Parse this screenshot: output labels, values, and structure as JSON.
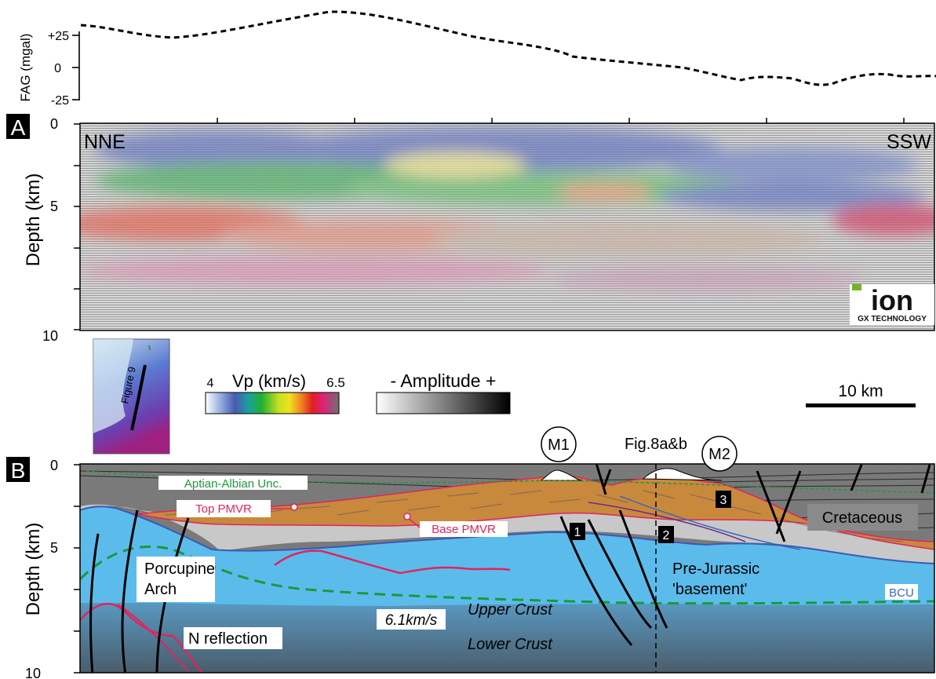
{
  "fag": {
    "axis_label": "FAG (mgal)",
    "ticks": [
      "+25",
      "0",
      "-25"
    ]
  },
  "panel_a": {
    "letter": "A",
    "y_label": "Depth (km)",
    "y_ticks": [
      "0",
      "5",
      "10"
    ],
    "left_dir": "NNE",
    "right_dir": "SSW",
    "logo_text": "ion",
    "logo_sub": "GX TECHNOLOGY"
  },
  "legend": {
    "inset_label": "Figure 9",
    "vp_min": "4",
    "vp_title": "Vp (km/s)",
    "vp_max": "6.5",
    "amp_title": "- Amplitude +",
    "scale_label": "10 km"
  },
  "panel_b": {
    "letter": "B",
    "y_label": "Depth (km)",
    "y_ticks": [
      "0",
      "5",
      "10"
    ],
    "m1": "M1",
    "m2": "M2",
    "fig_ref": "Fig.8a&b",
    "aptian": "Aptian-Albian Unc.",
    "top_pmvr": "Top PMVR",
    "base_pmvr": "Base PMVR",
    "cretaceous": "Cretaceous",
    "porcupine_1": "Porcupine",
    "porcupine_2": "Arch",
    "prejurassic_1": "Pre-Jurassic",
    "prejurassic_2": "'basement'",
    "bcu": "BCU",
    "upper_crust": "Upper Crust",
    "lower_crust": "Lower Crust",
    "velocity": "6.1km/s",
    "n_reflection": "N reflection",
    "box1": "1",
    "box2": "2",
    "box3": "3"
  },
  "colors": {
    "pmvr": "#c8893c",
    "crust_blue": "#5bbcec",
    "cretaceous_grey": "#7a7a7a",
    "horizon_red": "#e0245e",
    "unconformity_green": "#1a9a3a"
  }
}
